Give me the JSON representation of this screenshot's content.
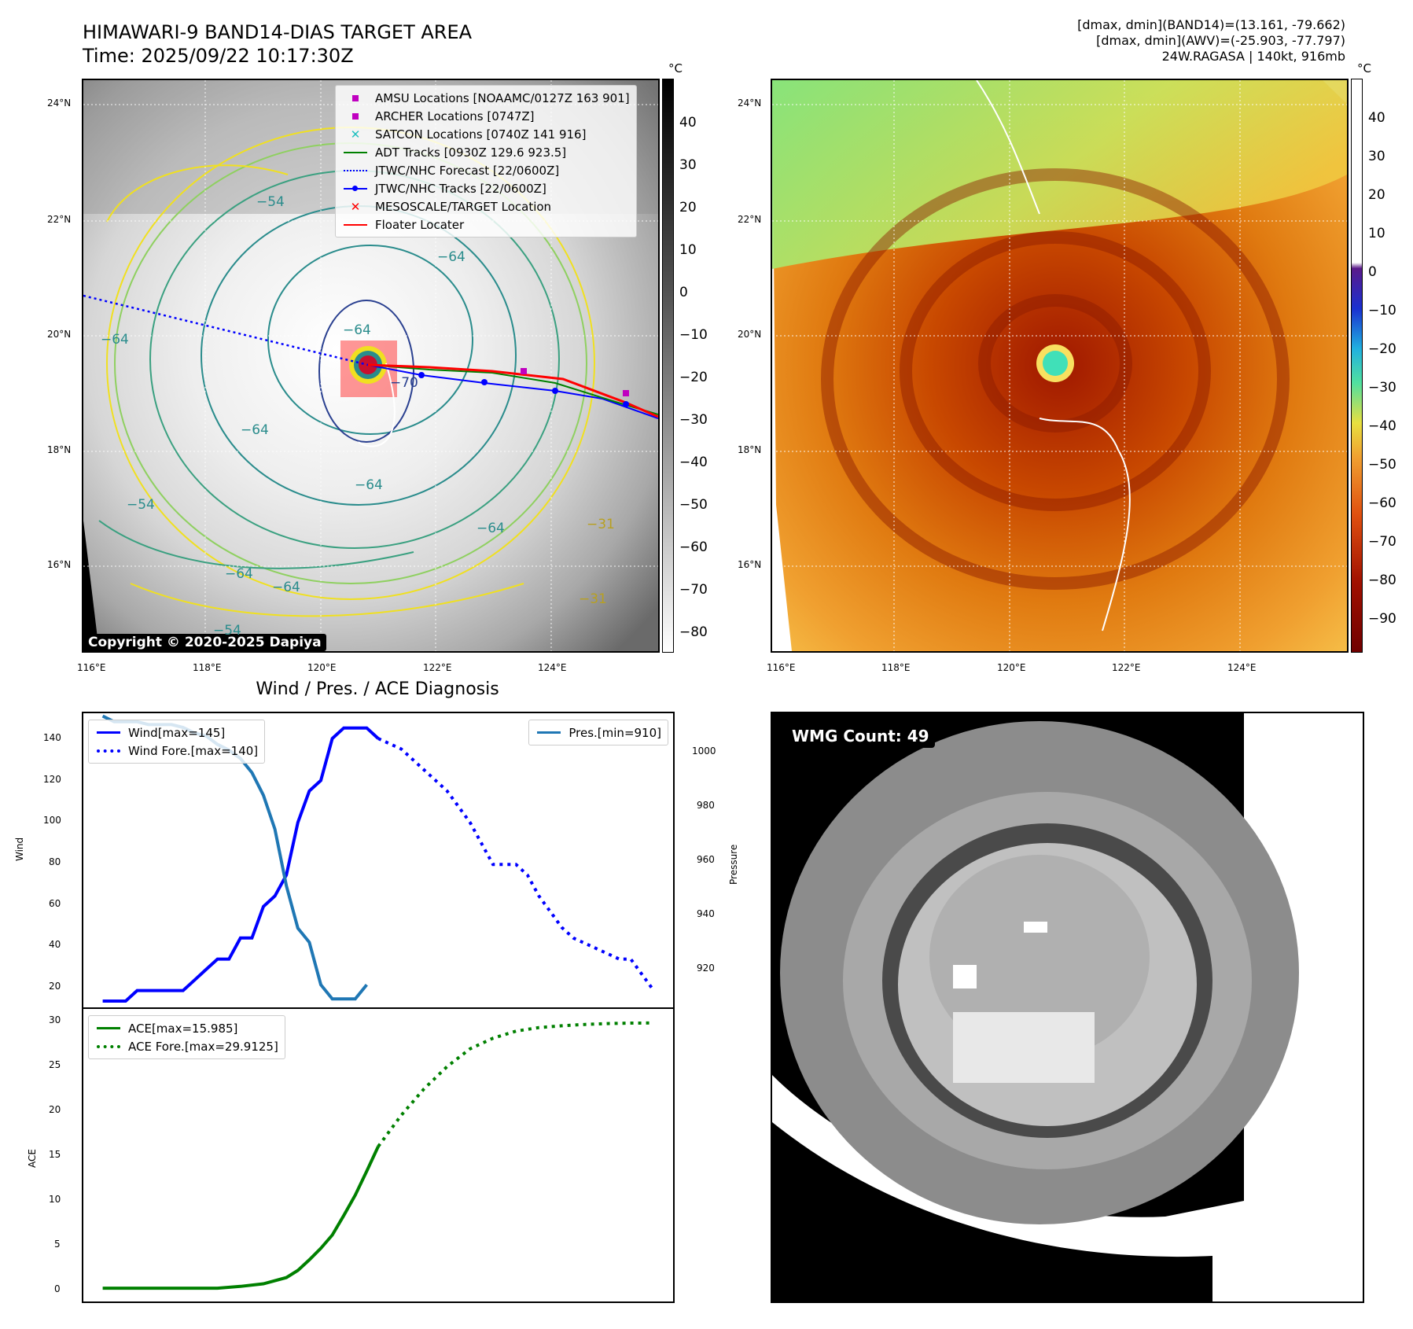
{
  "header": {
    "title_line1": "HIMAWARI-9 BAND14-DIAS TARGET AREA",
    "title_line2": "Time: 2025/09/22 10:17:30Z",
    "meta_line1": "[dmax, dmin](BAND14)=(13.161, -79.662)",
    "meta_line2": "[dmax, dmin](AWV)=(-25.903, -77.797)",
    "meta_line3": "24W.RAGASA | 140kt, 916mb"
  },
  "map_left": {
    "lat_labels": [
      "24°N",
      "22°N",
      "20°N",
      "18°N",
      "16°N"
    ],
    "lon_labels": [
      "116°E",
      "118°E",
      "120°E",
      "122°E",
      "124°E"
    ],
    "colorbar_unit": "°C",
    "colorbar_ticks": [
      "40",
      "30",
      "20",
      "10",
      "0",
      "−10",
      "−20",
      "−30",
      "−40",
      "−50",
      "−60",
      "−70",
      "−80"
    ],
    "contour_labels": [
      "−54",
      "−64",
      "−64",
      "−64",
      "−64",
      "−70",
      "−64",
      "−64",
      "−64",
      "−54",
      "−31",
      "−54",
      "−31",
      "−64"
    ],
    "copyright": "Copyright © 2020-2025 Dapiya",
    "legend": [
      {
        "label": "AMSU Locations [NOAAMC/0127Z 163 901]",
        "icon": "square-marker",
        "color": "#c000c0"
      },
      {
        "label": "ARCHER Locations [0747Z]",
        "icon": "square-marker",
        "color": "#c000c0"
      },
      {
        "label": "SATCON Locations [0740Z 141 916]",
        "icon": "x-marker",
        "color": "#20c0c0"
      },
      {
        "label": "ADT Tracks [0930Z 129.6 923.5]",
        "icon": "solid-line",
        "color": "#008000"
      },
      {
        "label": "JTWC/NHC Forecast [22/0600Z]",
        "icon": "dotted-line",
        "color": "#0000ff"
      },
      {
        "label": "JTWC/NHC Tracks [22/0600Z]",
        "icon": "dot-line",
        "color": "#0000ff"
      },
      {
        "label": "MESOSCALE/TARGET Location",
        "icon": "x-marker",
        "color": "#ff0000"
      },
      {
        "label": "Floater Locater",
        "icon": "solid-line",
        "color": "#ff0000"
      }
    ]
  },
  "map_right": {
    "lat_labels": [
      "24°N",
      "22°N",
      "20°N",
      "18°N",
      "16°N"
    ],
    "lon_labels": [
      "116°E",
      "118°E",
      "120°E",
      "122°E",
      "124°E"
    ],
    "colorbar_unit": "°C",
    "colorbar_ticks": [
      "40",
      "30",
      "20",
      "10",
      "0",
      "−10",
      "−20",
      "−30",
      "−40",
      "−50",
      "−60",
      "−70",
      "−80",
      "−90"
    ]
  },
  "diagnosis": {
    "title": "Wind / Pres. / ACE Diagnosis",
    "wind_axis_label": "Wind",
    "pressure_axis_label": "Pressure",
    "ace_axis_label": "ACE",
    "wind_legend": [
      "Wind[max=145]",
      "Wind Fore.[max=140]"
    ],
    "pres_legend": [
      "Pres.[min=910]"
    ],
    "ace_legend": [
      "ACE[max=15.985]",
      "ACE Fore.[max=29.9125]"
    ],
    "wind_ticks": [
      "140",
      "120",
      "100",
      "80",
      "60",
      "40",
      "20"
    ],
    "pres_ticks": [
      "1000",
      "980",
      "960",
      "940",
      "920"
    ],
    "ace_ticks": [
      "30",
      "25",
      "20",
      "15",
      "10",
      "5",
      "0"
    ]
  },
  "wmg": {
    "label": "WMG Count: 49"
  },
  "chart_data": [
    {
      "type": "line",
      "title": "Wind / Pres. / ACE Diagnosis",
      "ylabel": "Wind",
      "ylim": [
        12,
        152
      ],
      "series": [
        {
          "name": "Wind[max=145]",
          "color": "#0000ff",
          "style": "solid",
          "x": [
            0,
            1,
            2,
            3,
            4,
            5,
            6,
            7,
            8,
            9,
            10,
            11,
            12,
            13,
            14,
            15,
            16,
            17,
            18,
            19,
            20,
            21,
            22,
            23,
            24,
            25,
            26
          ],
          "values": [
            15,
            15,
            15,
            20,
            20,
            20,
            20,
            20,
            25,
            30,
            35,
            35,
            45,
            45,
            60,
            65,
            75,
            100,
            115,
            120,
            140,
            145,
            145,
            145,
            140,
            null,
            null
          ]
        },
        {
          "name": "Wind Fore.[max=140]",
          "color": "#0000ff",
          "style": "dotted",
          "x": [
            24,
            26,
            28,
            30,
            32,
            34,
            36,
            37,
            38,
            40,
            41,
            43,
            45,
            46,
            48
          ],
          "values": [
            140,
            135,
            125,
            115,
            100,
            80,
            80,
            75,
            65,
            50,
            45,
            40,
            35,
            35,
            20
          ]
        }
      ]
    },
    {
      "type": "line",
      "ylabel": "Pressure",
      "ylim": [
        907,
        1011
      ],
      "series": [
        {
          "name": "Pres.[min=910]",
          "color": "#1f77b4",
          "style": "solid",
          "x": [
            0,
            1,
            2,
            3,
            4,
            5,
            6,
            7,
            8,
            9,
            10,
            11,
            12,
            13,
            14,
            15,
            16,
            17,
            18,
            19,
            20,
            21,
            22,
            23,
            24
          ],
          "values": [
            1010,
            1008,
            1008,
            1008,
            1007,
            1007,
            1007,
            1006,
            1004,
            1003,
            1000,
            998,
            995,
            990,
            982,
            970,
            950,
            935,
            930,
            915,
            910,
            910,
            910,
            915,
            null
          ]
        }
      ]
    },
    {
      "type": "line",
      "ylabel": "ACE",
      "ylim": [
        -1.5,
        31.5
      ],
      "series": [
        {
          "name": "ACE[max=15.985]",
          "color": "#008000",
          "style": "solid",
          "x": [
            0,
            2,
            4,
            6,
            8,
            10,
            12,
            14,
            16,
            17,
            18,
            19,
            20,
            21,
            22,
            23,
            24
          ],
          "values": [
            0,
            0,
            0,
            0,
            0,
            0,
            0.2,
            0.5,
            1.2,
            2,
            3.2,
            4.5,
            6,
            8.2,
            10.5,
            13.2,
            15.985
          ]
        },
        {
          "name": "ACE Fore.[max=29.9125]",
          "color": "#008000",
          "style": "dotted",
          "x": [
            24,
            26,
            28,
            30,
            32,
            34,
            36,
            38,
            40,
            42,
            44,
            46,
            48
          ],
          "values": [
            15.985,
            19.5,
            22.5,
            25,
            27,
            28.2,
            29,
            29.4,
            29.6,
            29.75,
            29.85,
            29.9,
            29.9125
          ]
        }
      ]
    }
  ]
}
